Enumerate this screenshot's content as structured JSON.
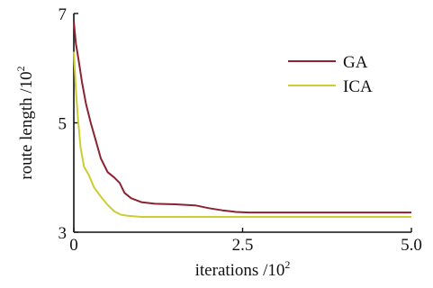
{
  "chart_data": {
    "type": "line",
    "title": "",
    "xlabel": {
      "text": "iterations /10",
      "sup": "2"
    },
    "ylabel": {
      "text": "route length /10",
      "sup": "2"
    },
    "xlim": [
      0,
      5.0
    ],
    "ylim": [
      3,
      7
    ],
    "x_ticks": [
      0,
      2.5,
      5.0
    ],
    "x_tick_labels": [
      "0",
      "2.5",
      "5.0"
    ],
    "y_ticks": [
      3,
      5,
      7
    ],
    "y_tick_labels": [
      "3",
      "5",
      "7"
    ],
    "grid": false,
    "legend_position": "top-right",
    "series": [
      {
        "name": "GA",
        "color": "#8b2332",
        "points": [
          [
            0.0,
            6.85
          ],
          [
            0.03,
            6.45
          ],
          [
            0.07,
            6.15
          ],
          [
            0.12,
            5.75
          ],
          [
            0.18,
            5.35
          ],
          [
            0.25,
            5.0
          ],
          [
            0.32,
            4.7
          ],
          [
            0.4,
            4.35
          ],
          [
            0.5,
            4.1
          ],
          [
            0.6,
            4.0
          ],
          [
            0.68,
            3.9
          ],
          [
            0.75,
            3.72
          ],
          [
            0.85,
            3.62
          ],
          [
            1.0,
            3.55
          ],
          [
            1.2,
            3.52
          ],
          [
            1.5,
            3.51
          ],
          [
            1.8,
            3.49
          ],
          [
            2.0,
            3.44
          ],
          [
            2.2,
            3.4
          ],
          [
            2.4,
            3.37
          ],
          [
            2.6,
            3.36
          ],
          [
            3.0,
            3.36
          ],
          [
            4.0,
            3.36
          ],
          [
            5.0,
            3.36
          ]
        ]
      },
      {
        "name": "ICA",
        "color": "#cccc33",
        "points": [
          [
            0.0,
            6.3
          ],
          [
            0.03,
            5.6
          ],
          [
            0.06,
            5.1
          ],
          [
            0.1,
            4.55
          ],
          [
            0.15,
            4.2
          ],
          [
            0.22,
            4.05
          ],
          [
            0.3,
            3.82
          ],
          [
            0.4,
            3.65
          ],
          [
            0.5,
            3.5
          ],
          [
            0.6,
            3.38
          ],
          [
            0.7,
            3.32
          ],
          [
            0.8,
            3.3
          ],
          [
            1.0,
            3.28
          ],
          [
            2.0,
            3.28
          ],
          [
            3.0,
            3.28
          ],
          [
            4.0,
            3.28
          ],
          [
            5.0,
            3.28
          ]
        ]
      }
    ]
  }
}
